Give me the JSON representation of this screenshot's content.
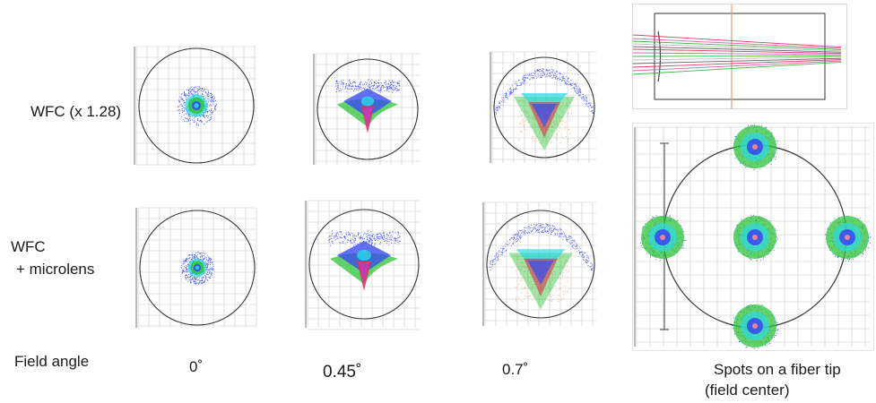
{
  "row_labels": {
    "wfc": "WFC (x 1.28)",
    "wfc_microlens_line1": "WFC",
    "wfc_microlens_line2": "+ microlens",
    "field_angle": "Field angle"
  },
  "field_angles": [
    "0˚",
    "0.45˚",
    "0.7˚"
  ],
  "fiber_caption": {
    "line1": "Spots on a fiber tip",
    "line2": "(field center)"
  },
  "spot_colors": {
    "blue": "#3b4cf0",
    "cyan": "#2bd8e6",
    "green": "#2ec43a",
    "red": "#e0304a",
    "magenta": "#c33bd6",
    "orange": "#e08a3a"
  },
  "ray_colors": [
    "#e3245b",
    "#d94fa3",
    "#22b322",
    "#b5b5b5",
    "#555555"
  ]
}
